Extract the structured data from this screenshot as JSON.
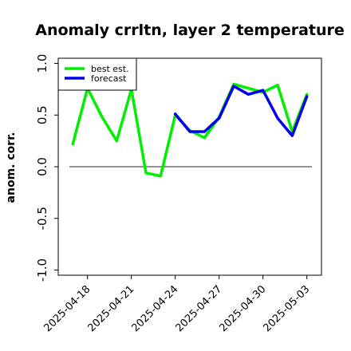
{
  "chart_data": {
    "type": "line",
    "title": "Anomaly crrltn, layer 2 temperature",
    "ylabel": "anom. corr.",
    "xlabel": "",
    "ylim": [
      -1.05,
      1.05
    ],
    "yticks": [
      -1.0,
      -0.5,
      0.0,
      0.5,
      1.0
    ],
    "ytick_labels": [
      "-1.0",
      "-0.5",
      "0.0",
      "0.5",
      "1.0"
    ],
    "xticks": [
      "2025-04-18",
      "2025-04-21",
      "2025-04-24",
      "2025-04-27",
      "2025-04-30",
      "2025-05-03"
    ],
    "highlight_tick": "2025-04-24",
    "highlight_color": "#228b22",
    "reference_line": 0.0,
    "legend_position": "top-left",
    "series": [
      {
        "name": "best est.",
        "color": "#00ee00",
        "x": [
          "2025-04-17",
          "2025-04-18",
          "2025-04-19",
          "2025-04-20",
          "2025-04-21",
          "2025-04-22",
          "2025-04-23",
          "2025-04-24",
          "2025-04-25",
          "2025-04-26",
          "2025-04-27",
          "2025-04-28",
          "2025-04-29",
          "2025-04-30",
          "2025-05-01",
          "2025-05-02",
          "2025-05-03"
        ],
        "values": [
          0.22,
          0.76,
          0.48,
          0.25,
          0.75,
          -0.06,
          -0.09,
          0.5,
          0.35,
          0.28,
          0.48,
          0.8,
          0.76,
          0.72,
          0.79,
          0.34,
          0.7
        ]
      },
      {
        "name": "forecast",
        "color": "#0000ee",
        "x": [
          "2025-04-24",
          "2025-04-25",
          "2025-04-26",
          "2025-04-27",
          "2025-04-28",
          "2025-04-29",
          "2025-04-30",
          "2025-05-01",
          "2025-05-02",
          "2025-05-03"
        ],
        "values": [
          0.51,
          0.34,
          0.34,
          0.47,
          0.78,
          0.7,
          0.74,
          0.47,
          0.3,
          0.68
        ]
      }
    ]
  }
}
